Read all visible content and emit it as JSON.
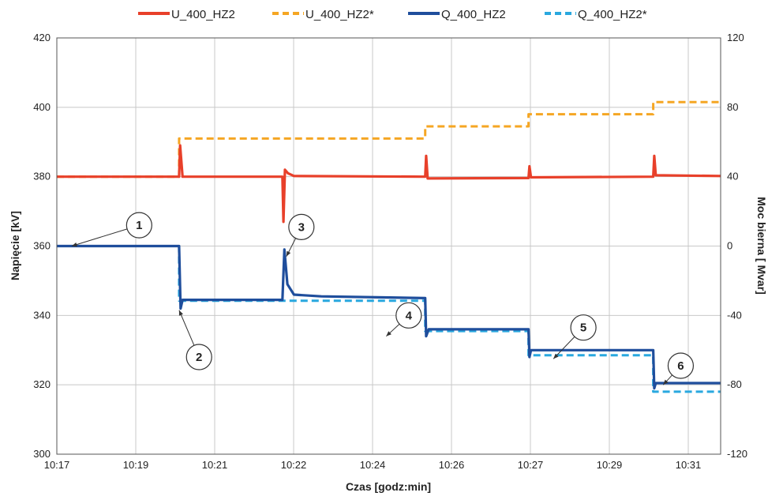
{
  "chart_data": {
    "type": "line",
    "x_tick_labels": [
      "10:17",
      "10:19",
      "10:21",
      "10:22",
      "10:24",
      "10:26",
      "10:27",
      "10:29",
      "10:31"
    ],
    "xlabel": "Czas [godz:min]",
    "ylabel": "Napięcie  [kV]",
    "y2label": "Moc bierna [ Mvar]",
    "ylim": [
      300,
      420
    ],
    "y2lim": [
      -120,
      120
    ],
    "y_ticks": [
      300,
      320,
      340,
      360,
      380,
      400,
      420
    ],
    "y2_ticks": [
      -120,
      -80,
      -40,
      0,
      40,
      80,
      120
    ],
    "grid": true,
    "legend_position": "top",
    "x_unit_note": "x values in minutes after 10:17",
    "series": [
      {
        "name": "U_400_HZ2",
        "axis": "left",
        "color": "#e8402a",
        "style": "solid",
        "points": [
          [
            0,
            380
          ],
          [
            2.45,
            380
          ],
          [
            2.47,
            389
          ],
          [
            2.52,
            380
          ],
          [
            4.52,
            380
          ],
          [
            4.54,
            367
          ],
          [
            4.57,
            382
          ],
          [
            4.63,
            381
          ],
          [
            4.75,
            380.2
          ],
          [
            7.38,
            380
          ],
          [
            7.4,
            386
          ],
          [
            7.43,
            379.5
          ],
          [
            9.45,
            379.6
          ],
          [
            9.47,
            383
          ],
          [
            9.5,
            379.8
          ],
          [
            11.95,
            380
          ],
          [
            11.97,
            386
          ],
          [
            12,
            380.4
          ],
          [
            13.3,
            380.2
          ]
        ]
      },
      {
        "name": "U_400_HZ2*",
        "axis": "left",
        "color": "#f5a623",
        "style": "dashed",
        "points": [
          [
            0,
            380
          ],
          [
            2.45,
            380
          ],
          [
            2.45,
            391
          ],
          [
            7.38,
            391
          ],
          [
            7.38,
            394.5
          ],
          [
            9.45,
            394.5
          ],
          [
            9.45,
            398
          ],
          [
            11.95,
            398
          ],
          [
            11.95,
            401.5
          ],
          [
            13.3,
            401.5
          ]
        ]
      },
      {
        "name": "Q_400_HZ2",
        "axis": "right",
        "color": "#1f4e9c",
        "style": "solid",
        "points": [
          [
            0,
            0
          ],
          [
            2.45,
            0
          ],
          [
            2.48,
            -36
          ],
          [
            2.52,
            -31
          ],
          [
            4.52,
            -31
          ],
          [
            4.56,
            -2
          ],
          [
            4.62,
            -22
          ],
          [
            4.75,
            -28
          ],
          [
            5.3,
            -29
          ],
          [
            7.38,
            -30
          ],
          [
            7.4,
            -52
          ],
          [
            7.45,
            -48
          ],
          [
            9.45,
            -48
          ],
          [
            9.47,
            -64
          ],
          [
            9.5,
            -60
          ],
          [
            11.95,
            -60
          ],
          [
            11.97,
            -82
          ],
          [
            12,
            -79
          ],
          [
            13.3,
            -79
          ]
        ]
      },
      {
        "name": "Q_400_HZ2*",
        "axis": "right",
        "color": "#29a8df",
        "style": "dashed",
        "points": [
          [
            0,
            0
          ],
          [
            2.45,
            0
          ],
          [
            2.45,
            -31.5
          ],
          [
            7.38,
            -31.5
          ],
          [
            7.38,
            -49
          ],
          [
            9.45,
            -49
          ],
          [
            9.45,
            -63
          ],
          [
            11.95,
            -63
          ],
          [
            11.95,
            -84
          ],
          [
            13.3,
            -84
          ]
        ]
      }
    ],
    "annotations": [
      {
        "label": "1",
        "x": 1.65,
        "y2": 12,
        "tx": 0.3,
        "ty2": 0
      },
      {
        "label": "2",
        "x": 2.85,
        "y2": -64,
        "tx": 2.45,
        "ty2": -37
      },
      {
        "label": "3",
        "x": 4.9,
        "y2": 11,
        "tx": 4.6,
        "ty2": -6
      },
      {
        "label": "4",
        "x": 7.05,
        "y2": -40,
        "tx": 6.6,
        "ty2": -52
      },
      {
        "label": "5",
        "x": 10.55,
        "y2": -47,
        "tx": 9.95,
        "ty2": -65
      },
      {
        "label": "6",
        "x": 12.5,
        "y2": -69,
        "tx": 12.15,
        "ty2": -80
      }
    ]
  }
}
